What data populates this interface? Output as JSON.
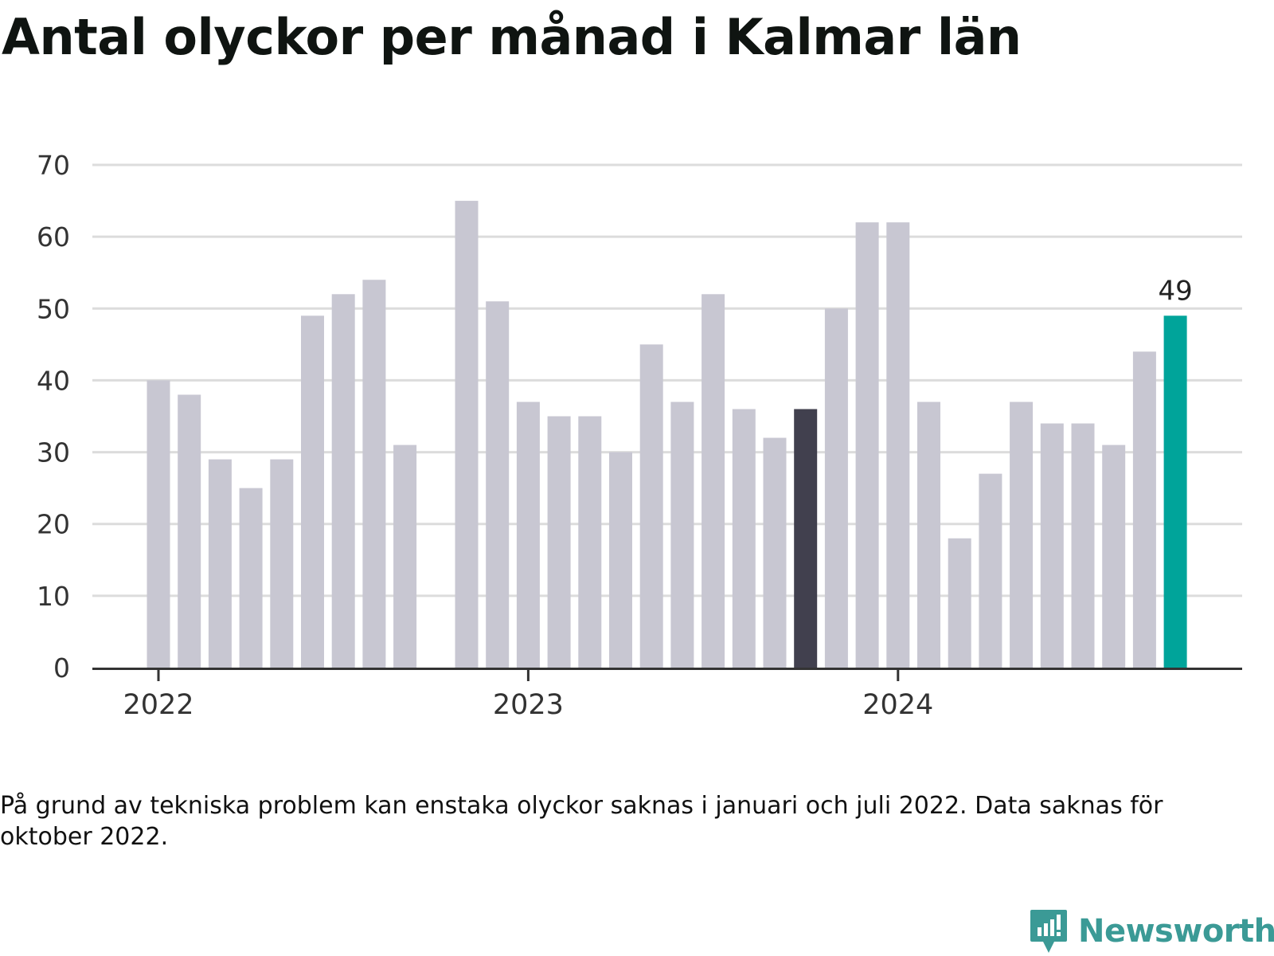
{
  "title": "Antal olyckor per månad i Kalmar län",
  "footnote": "På grund av tekniska problem kan enstaka olyckor saknas i januari och juli 2022. Data saknas för oktober 2022.",
  "brand": {
    "name": "Newsworthy",
    "icon": "newsworthy-logo-icon",
    "color": "#3b9a96"
  },
  "colors": {
    "bar": "#c8c7d2",
    "highlight_dark": "#41404e",
    "highlight_latest": "#00a49a",
    "grid": "#dcdcdc",
    "axis": "#333333"
  },
  "chart_data": {
    "type": "bar",
    "title": "Antal olyckor per månad i Kalmar län",
    "xlabel": "",
    "ylabel": "",
    "ylim": [
      0,
      70
    ],
    "yticks": [
      0,
      10,
      20,
      30,
      40,
      50,
      60,
      70
    ],
    "xtick_labels": [
      {
        "label": "2022",
        "category": "2022-01"
      },
      {
        "label": "2023",
        "category": "2023-01"
      },
      {
        "label": "2024",
        "category": "2024-01"
      }
    ],
    "grid": true,
    "categories": [
      "2022-01",
      "2022-02",
      "2022-03",
      "2022-04",
      "2022-05",
      "2022-06",
      "2022-07",
      "2022-08",
      "2022-09",
      "2022-10",
      "2022-11",
      "2022-12",
      "2023-01",
      "2023-02",
      "2023-03",
      "2023-04",
      "2023-05",
      "2023-06",
      "2023-07",
      "2023-08",
      "2023-09",
      "2023-10",
      "2023-11",
      "2023-12",
      "2024-01",
      "2024-02",
      "2024-03",
      "2024-04",
      "2024-05",
      "2024-06",
      "2024-07",
      "2024-08",
      "2024-09",
      "2024-10"
    ],
    "values": [
      40,
      38,
      29,
      25,
      29,
      49,
      52,
      54,
      31,
      null,
      65,
      51,
      37,
      35,
      35,
      30,
      45,
      37,
      52,
      36,
      32,
      36,
      50,
      62,
      62,
      37,
      18,
      27,
      37,
      34,
      34,
      31,
      44,
      49
    ],
    "highlight": [
      {
        "category": "2023-10",
        "style": "dark"
      },
      {
        "category": "2024-10",
        "style": "latest",
        "label": "49"
      }
    ]
  }
}
